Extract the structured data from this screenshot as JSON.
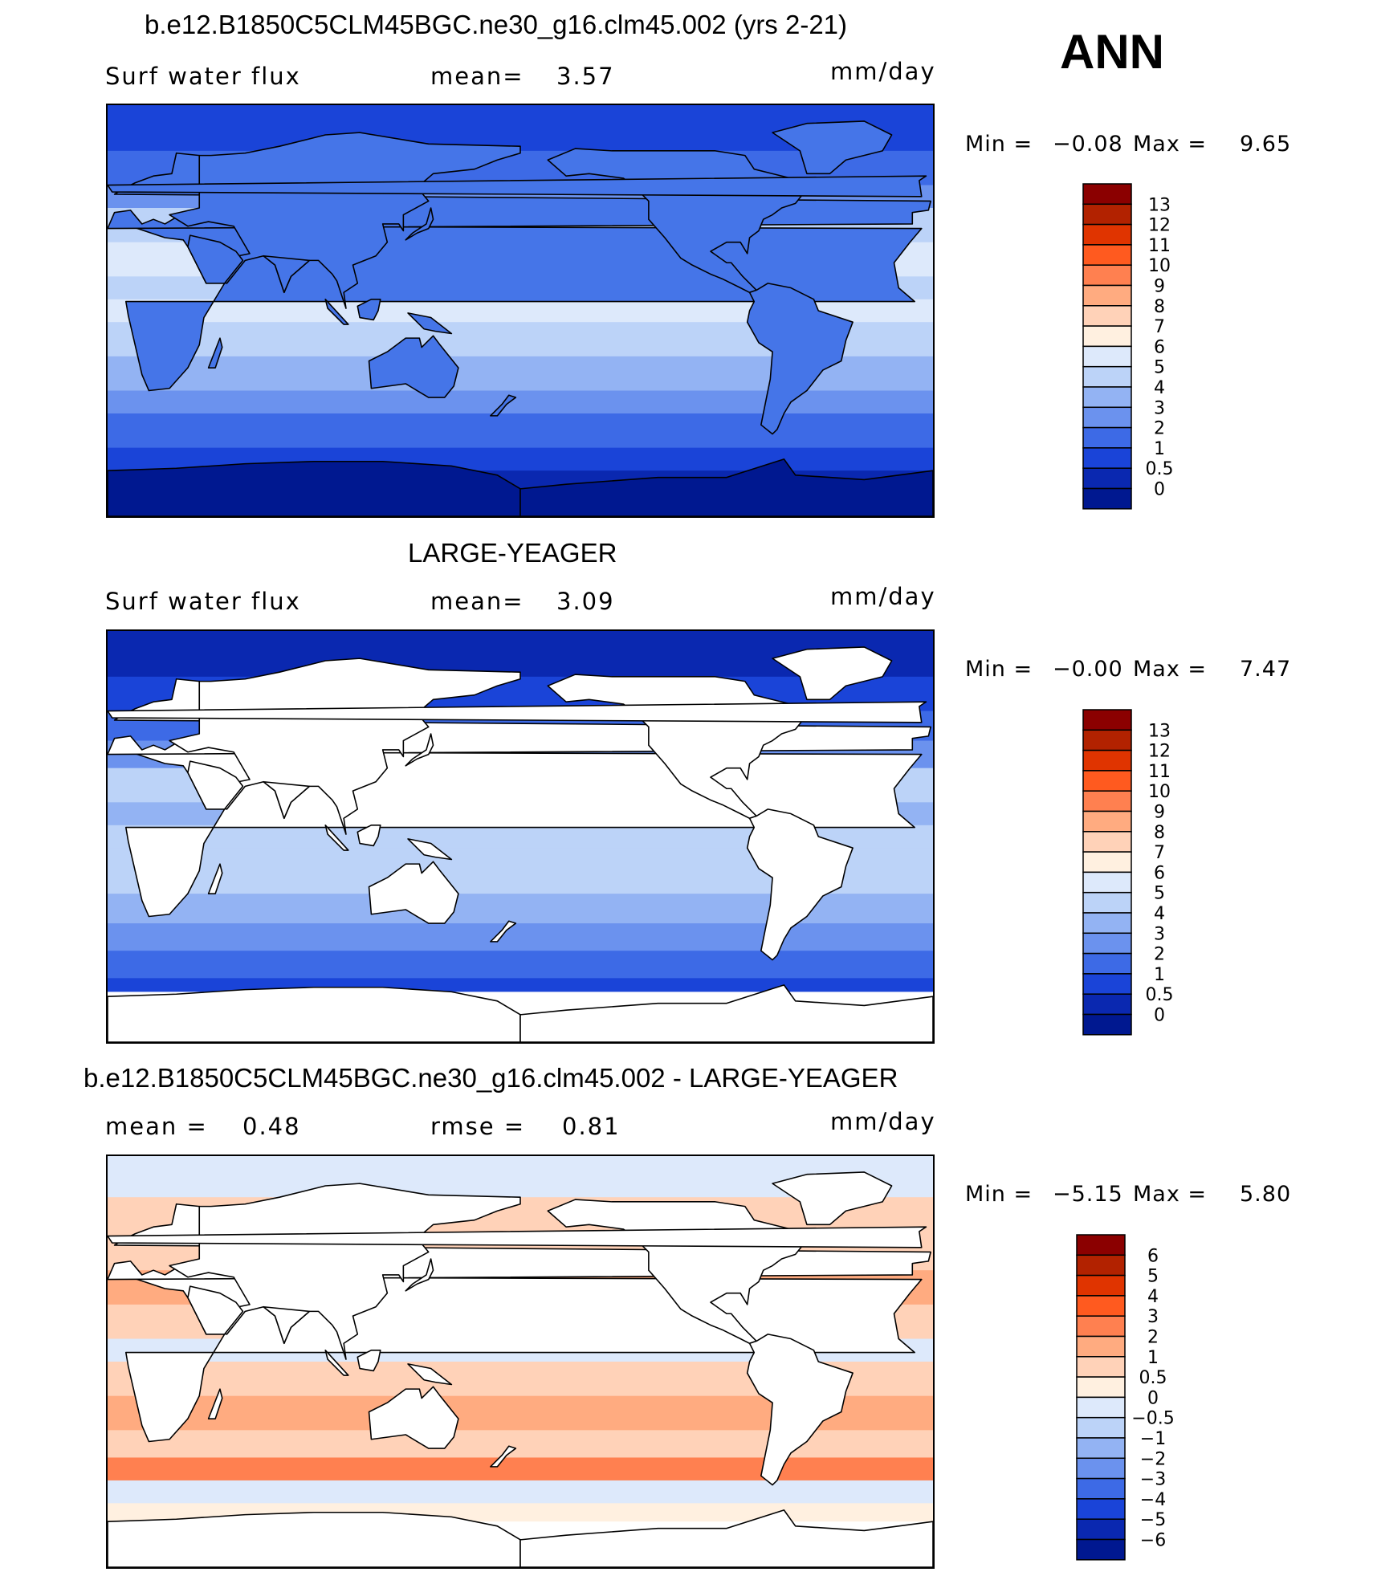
{
  "season": "ANN",
  "panels": [
    {
      "id": "model",
      "title": "b.e12.B1850C5CLM45BGC.ne30_g16.clm45.002 (yrs 2-21)",
      "left_label": "Surf water flux",
      "mid_label": "mean=",
      "mid_value": "3.57",
      "units": "mm/day",
      "min_label": "Min =",
      "min_value": "−0.08",
      "max_label": "Max =",
      "max_value": "9.65",
      "land_fill": "#4575e8",
      "colorbar": {
        "labels": [
          "13",
          "12",
          "11",
          "10",
          "9",
          "8",
          "7",
          "6",
          "5",
          "4",
          "3",
          "2",
          "1",
          "0.5",
          "0"
        ],
        "colors": [
          "#8b0000",
          "#b22200",
          "#e03400",
          "#ff5a1f",
          "#ff8050",
          "#ffab80",
          "#ffd2b8",
          "#fff0e0",
          "#dde9fb",
          "#bcd3f8",
          "#93b3f3",
          "#6b92ee",
          "#3d6ae6",
          "#1a44d8",
          "#0a28b0",
          "#001890"
        ]
      },
      "zones": [
        {
          "lat_top": 90,
          "lat_bottom": 70,
          "color": "#1a44d8"
        },
        {
          "lat_top": 70,
          "lat_bottom": 55,
          "color": "#3d6ae6"
        },
        {
          "lat_top": 55,
          "lat_bottom": 45,
          "color": "#6b92ee"
        },
        {
          "lat_top": 45,
          "lat_bottom": 30,
          "color": "#bcd3f8"
        },
        {
          "lat_top": 30,
          "lat_bottom": 15,
          "color": "#dde9fb"
        },
        {
          "lat_top": 15,
          "lat_bottom": 5,
          "color": "#bcd3f8"
        },
        {
          "lat_top": 5,
          "lat_bottom": -5,
          "color": "#dde9fb"
        },
        {
          "lat_top": -5,
          "lat_bottom": -20,
          "color": "#bcd3f8"
        },
        {
          "lat_top": -20,
          "lat_bottom": -35,
          "color": "#93b3f3"
        },
        {
          "lat_top": -35,
          "lat_bottom": -45,
          "color": "#6b92ee"
        },
        {
          "lat_top": -45,
          "lat_bottom": -60,
          "color": "#3d6ae6"
        },
        {
          "lat_top": -60,
          "lat_bottom": -70,
          "color": "#1a44d8"
        },
        {
          "lat_top": -70,
          "lat_bottom": -90,
          "color": "#0a28b0"
        }
      ]
    },
    {
      "id": "obs",
      "title": "LARGE-YEAGER",
      "left_label": "Surf water flux",
      "mid_label": "mean=",
      "mid_value": "3.09",
      "units": "mm/day",
      "min_label": "Min =",
      "min_value": "−0.00",
      "max_label": "Max =",
      "max_value": "7.47",
      "land_fill": "#ffffff",
      "colorbar": {
        "labels": [
          "13",
          "12",
          "11",
          "10",
          "9",
          "8",
          "7",
          "6",
          "5",
          "4",
          "3",
          "2",
          "1",
          "0.5",
          "0"
        ],
        "colors": [
          "#8b0000",
          "#b22200",
          "#e03400",
          "#ff5a1f",
          "#ff8050",
          "#ffab80",
          "#ffd2b8",
          "#fff0e0",
          "#dde9fb",
          "#bcd3f8",
          "#93b3f3",
          "#6b92ee",
          "#3d6ae6",
          "#1a44d8",
          "#0a28b0",
          "#001890"
        ]
      },
      "zones": [
        {
          "lat_top": 90,
          "lat_bottom": 70,
          "color": "#0a28b0"
        },
        {
          "lat_top": 70,
          "lat_bottom": 55,
          "color": "#1a44d8"
        },
        {
          "lat_top": 55,
          "lat_bottom": 42,
          "color": "#3d6ae6"
        },
        {
          "lat_top": 42,
          "lat_bottom": 30,
          "color": "#6b92ee"
        },
        {
          "lat_top": 30,
          "lat_bottom": 15,
          "color": "#bcd3f8"
        },
        {
          "lat_top": 15,
          "lat_bottom": 5,
          "color": "#93b3f3"
        },
        {
          "lat_top": 5,
          "lat_bottom": -5,
          "color": "#bcd3f8"
        },
        {
          "lat_top": -5,
          "lat_bottom": -25,
          "color": "#bcd3f8"
        },
        {
          "lat_top": -25,
          "lat_bottom": -38,
          "color": "#93b3f3"
        },
        {
          "lat_top": -38,
          "lat_bottom": -50,
          "color": "#6b92ee"
        },
        {
          "lat_top": -50,
          "lat_bottom": -62,
          "color": "#3d6ae6"
        },
        {
          "lat_top": -62,
          "lat_bottom": -68,
          "color": "#1a44d8"
        },
        {
          "lat_top": -68,
          "lat_bottom": -90,
          "color": "#ffffff"
        }
      ]
    },
    {
      "id": "diff",
      "title": "b.e12.B1850C5CLM45BGC.ne30_g16.clm45.002 - LARGE-YEAGER",
      "left_label": "mean =",
      "left_value": "0.48",
      "mid_label": "rmse =",
      "mid_value": "0.81",
      "units": "mm/day",
      "min_label": "Min =",
      "min_value": "−5.15",
      "max_label": "Max =",
      "max_value": "5.80",
      "land_fill": "#ffffff",
      "colorbar": {
        "labels": [
          "6",
          "5",
          "4",
          "3",
          "2",
          "1",
          "0.5",
          "0",
          "−0.5",
          "−1",
          "−2",
          "−3",
          "−4",
          "−5",
          "−6"
        ],
        "colors": [
          "#8b0000",
          "#b22200",
          "#e03400",
          "#ff5a1f",
          "#ff8050",
          "#ffab80",
          "#ffd2b8",
          "#fff0e0",
          "#dde9fb",
          "#bcd3f8",
          "#93b3f3",
          "#6b92ee",
          "#3d6ae6",
          "#1a44d8",
          "#0a28b0",
          "#001890"
        ]
      },
      "zones": [
        {
          "lat_top": 90,
          "lat_bottom": 72,
          "color": "#dde9fb"
        },
        {
          "lat_top": 72,
          "lat_bottom": 55,
          "color": "#ffd2b8"
        },
        {
          "lat_top": 55,
          "lat_bottom": 40,
          "color": "#ffd2b8"
        },
        {
          "lat_top": 40,
          "lat_bottom": 25,
          "color": "#ffab80"
        },
        {
          "lat_top": 25,
          "lat_bottom": 10,
          "color": "#ffd2b8"
        },
        {
          "lat_top": 10,
          "lat_bottom": 0,
          "color": "#dde9fb"
        },
        {
          "lat_top": 0,
          "lat_bottom": -15,
          "color": "#ffd2b8"
        },
        {
          "lat_top": -15,
          "lat_bottom": -30,
          "color": "#ffab80"
        },
        {
          "lat_top": -30,
          "lat_bottom": -42,
          "color": "#ffd2b8"
        },
        {
          "lat_top": -42,
          "lat_bottom": -52,
          "color": "#ff8050"
        },
        {
          "lat_top": -52,
          "lat_bottom": -62,
          "color": "#dde9fb"
        },
        {
          "lat_top": -62,
          "lat_bottom": -70,
          "color": "#fff0e0"
        },
        {
          "lat_top": -70,
          "lat_bottom": -90,
          "color": "#ffffff"
        }
      ]
    }
  ]
}
